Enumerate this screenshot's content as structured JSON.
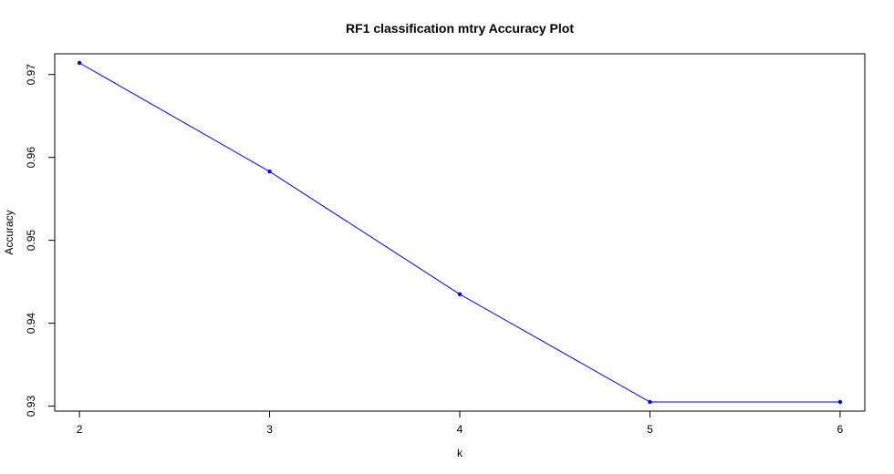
{
  "chart_data": {
    "type": "line",
    "title": "RF1 classification mtry Accuracy Plot",
    "xlabel": "k",
    "ylabel": "Accuracy",
    "x": [
      2,
      3,
      4,
      5,
      6
    ],
    "series": [
      {
        "values": [
          0.9714,
          0.9583,
          0.9435,
          0.9305,
          0.9305
        ]
      }
    ],
    "xlim": [
      1.87,
      6.13
    ],
    "ylim": [
      0.9294,
      0.9725
    ],
    "xticks": [
      "2",
      "3",
      "4",
      "5",
      "6"
    ],
    "yticks": [
      "0.93",
      "0.94",
      "0.95",
      "0.96",
      "0.97"
    ],
    "grid": false,
    "legend": "none",
    "colors": {
      "line": "#0000ff",
      "marker": "#0000ff",
      "frame": "#000000"
    }
  }
}
